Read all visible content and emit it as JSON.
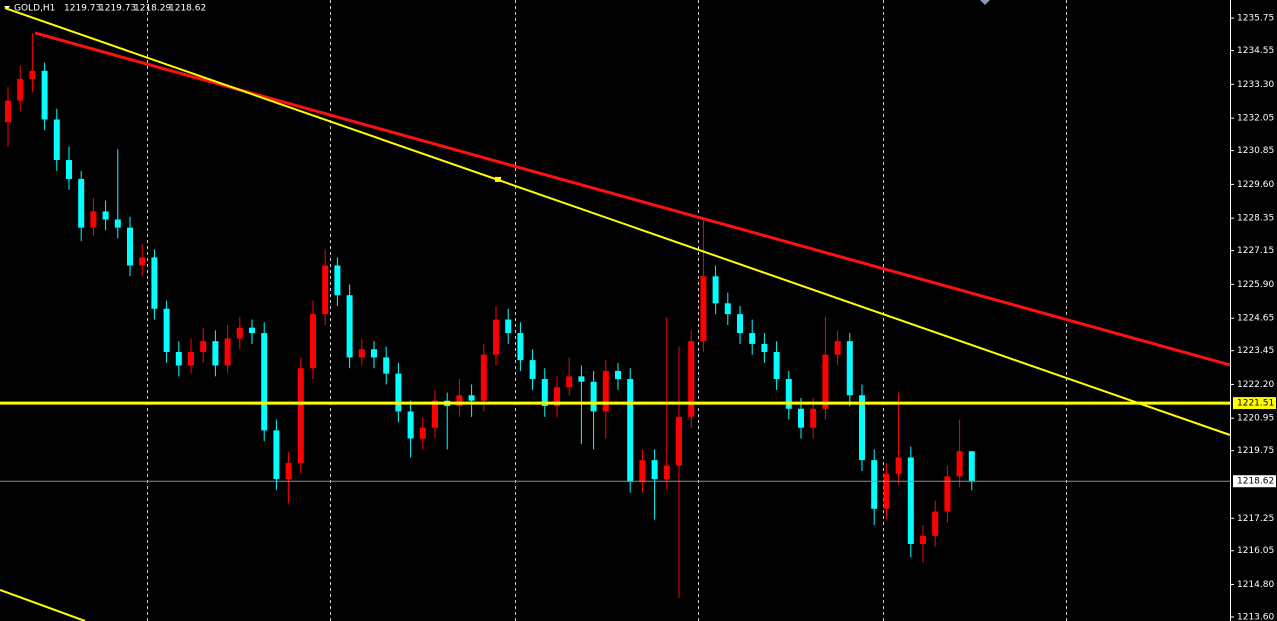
{
  "chart_data": {
    "type": "candlestick",
    "title": "GOLD,H1",
    "up_color": "#ff0000",
    "down_color": "#00ffff",
    "grid": true,
    "ylim": [
      1213.45,
      1236.42
    ],
    "yticks": [
      1235.75,
      1234.55,
      {
        "value": 1233.3,
        "label": "1233.30"
      },
      1232.05,
      1230.85,
      {
        "value": 1229.6,
        "label": "1229.60"
      },
      1228.35,
      1227.15,
      {
        "value": 1225.9,
        "label": "1225.90"
      },
      1224.65,
      1223.45,
      {
        "value": 1222.2,
        "label": "1222.20"
      },
      1220.95,
      1219.75,
      1217.25,
      1216.05,
      {
        "value": 1214.8,
        "label": "1214.80"
      },
      {
        "value": 1213.6,
        "label": "1213.60"
      }
    ],
    "hlines": [
      {
        "value": 1221.51,
        "color": "#ffff00"
      },
      {
        "value": 1218.62,
        "color": "#8c8ca8"
      }
    ],
    "trendlines": [
      {
        "color": "#ff1010",
        "start": 1235.2,
        "end": 1222.92
      },
      {
        "color": "#ffff00",
        "start": 1236.12,
        "end": 1220.33
      },
      {
        "color": "#ffff00",
        "start": 1214.6,
        "end": 1213.45
      }
    ],
    "ohlc": [
      [
        1231.9,
        1233.2,
        1231.0,
        1232.7
      ],
      [
        1232.7,
        1234.0,
        1232.3,
        1233.5
      ],
      [
        1233.5,
        1235.2,
        1233.0,
        1233.8
      ],
      [
        1233.8,
        1234.1,
        1231.6,
        1232.0
      ],
      [
        1232.0,
        1232.4,
        1230.1,
        1230.5
      ],
      [
        1230.5,
        1231.0,
        1229.4,
        1229.8
      ],
      [
        1229.8,
        1230.1,
        1227.5,
        1228.0
      ],
      [
        1228.0,
        1229.1,
        1227.7,
        1228.6
      ],
      [
        1228.6,
        1229.0,
        1227.9,
        1228.3
      ],
      [
        1228.3,
        1230.9,
        1227.6,
        1228.0
      ],
      [
        1228.0,
        1228.4,
        1226.2,
        1226.6
      ],
      [
        1226.6,
        1227.4,
        1226.2,
        1226.9
      ],
      [
        1226.9,
        1227.2,
        1224.6,
        1225.0
      ],
      [
        1225.0,
        1225.3,
        1223.0,
        1223.4
      ],
      [
        1223.4,
        1223.8,
        1222.5,
        1222.9
      ],
      [
        1222.9,
        1223.9,
        1222.6,
        1223.4
      ],
      [
        1223.4,
        1224.3,
        1223.0,
        1223.8
      ],
      [
        1223.8,
        1224.2,
        1222.5,
        1222.9
      ],
      [
        1222.9,
        1224.4,
        1222.6,
        1223.9
      ],
      [
        1223.9,
        1224.7,
        1223.5,
        1224.3
      ],
      [
        1224.3,
        1224.6,
        1223.7,
        1224.1
      ],
      [
        1224.1,
        1224.5,
        1220.1,
        1220.5
      ],
      [
        1220.5,
        1220.9,
        1218.3,
        1218.7
      ],
      [
        1218.7,
        1219.7,
        1217.8,
        1219.3
      ],
      [
        1219.3,
        1223.2,
        1218.9,
        1222.8
      ],
      [
        1222.8,
        1225.3,
        1222.4,
        1224.8
      ],
      [
        1224.8,
        1227.2,
        1224.4,
        1226.6
      ],
      [
        1226.6,
        1226.9,
        1225.1,
        1225.5
      ],
      [
        1225.5,
        1225.9,
        1222.8,
        1223.2
      ],
      [
        1223.2,
        1223.9,
        1222.9,
        1223.5
      ],
      [
        1223.5,
        1223.8,
        1222.8,
        1223.2
      ],
      [
        1223.2,
        1223.6,
        1222.2,
        1222.6
      ],
      [
        1222.6,
        1223.0,
        1220.8,
        1221.2
      ],
      [
        1221.2,
        1221.6,
        1219.5,
        1220.2
      ],
      [
        1220.2,
        1221.0,
        1219.8,
        1220.6
      ],
      [
        1220.6,
        1222.0,
        1220.2,
        1221.6
      ],
      [
        1221.6,
        1221.9,
        1219.8,
        1221.4
      ],
      [
        1221.4,
        1222.4,
        1221.0,
        1221.8
      ],
      [
        1221.8,
        1222.2,
        1221.0,
        1221.6
      ],
      [
        1221.6,
        1223.7,
        1221.2,
        1223.3
      ],
      [
        1223.3,
        1225.1,
        1222.9,
        1224.6
      ],
      [
        1224.6,
        1225.0,
        1223.7,
        1224.1
      ],
      [
        1224.1,
        1224.5,
        1222.7,
        1223.1
      ],
      [
        1223.1,
        1223.5,
        1222.0,
        1222.4
      ],
      [
        1222.4,
        1222.8,
        1221.0,
        1221.4
      ],
      [
        1221.4,
        1222.5,
        1221.0,
        1222.1
      ],
      [
        1222.1,
        1223.2,
        1221.8,
        1222.5
      ],
      [
        1222.5,
        1222.9,
        1220.0,
        1222.3
      ],
      [
        1222.3,
        1222.7,
        1219.8,
        1221.2
      ],
      [
        1221.2,
        1223.1,
        1220.2,
        1222.7
      ],
      [
        1222.7,
        1223.0,
        1222.0,
        1222.4
      ],
      [
        1222.4,
        1222.8,
        1218.2,
        1218.6
      ],
      [
        1218.6,
        1219.8,
        1218.2,
        1219.4
      ],
      [
        1219.4,
        1219.8,
        1217.2,
        1218.7
      ],
      [
        1218.7,
        1224.7,
        1218.3,
        1219.2
      ],
      [
        1219.2,
        1223.6,
        1214.3,
        1221.0
      ],
      [
        1221.0,
        1224.2,
        1220.6,
        1223.8
      ],
      [
        1223.8,
        1228.3,
        1223.4,
        1226.2
      ],
      [
        1226.2,
        1226.6,
        1224.8,
        1225.2
      ],
      [
        1225.2,
        1225.6,
        1224.4,
        1224.8
      ],
      [
        1224.8,
        1225.1,
        1223.7,
        1224.1
      ],
      [
        1224.1,
        1224.6,
        1223.3,
        1223.7
      ],
      [
        1223.7,
        1224.1,
        1223.0,
        1223.4
      ],
      [
        1223.4,
        1223.8,
        1222.0,
        1222.4
      ],
      [
        1222.4,
        1222.7,
        1220.9,
        1221.3
      ],
      [
        1221.3,
        1221.7,
        1220.2,
        1220.6
      ],
      [
        1220.6,
        1221.7,
        1220.2,
        1221.3
      ],
      [
        1221.3,
        1224.7,
        1220.9,
        1223.3
      ],
      [
        1223.3,
        1224.2,
        1222.9,
        1223.8
      ],
      [
        1223.8,
        1224.1,
        1221.4,
        1221.8
      ],
      [
        1221.8,
        1222.2,
        1219.0,
        1219.4
      ],
      [
        1219.4,
        1219.8,
        1217.0,
        1217.6
      ],
      [
        1217.6,
        1219.3,
        1217.2,
        1218.9
      ],
      [
        1218.9,
        1221.9,
        1218.5,
        1219.5
      ],
      [
        1219.5,
        1219.9,
        1215.8,
        1216.3
      ],
      [
        1216.3,
        1217.0,
        1215.6,
        1216.6
      ],
      [
        1216.6,
        1217.9,
        1216.2,
        1217.5
      ],
      [
        1217.5,
        1219.2,
        1217.1,
        1218.8
      ],
      [
        1218.8,
        1220.9,
        1218.4,
        1219.73
      ],
      [
        1219.73,
        1219.73,
        1218.29,
        1218.62
      ]
    ]
  }
}
